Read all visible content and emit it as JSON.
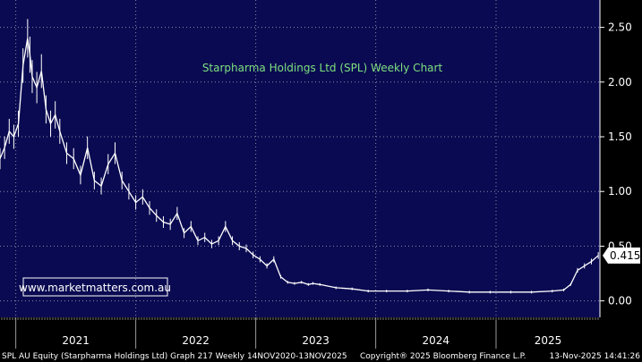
{
  "chart_data": {
    "type": "line",
    "title": "Starpharma Holdings Ltd (SPL) Weekly Chart",
    "watermark": "www.marketmatters.com.au",
    "x_labels": [
      "2021",
      "2022",
      "2023",
      "2024",
      "2025"
    ],
    "y_ticks": [
      "0.00",
      "0.50",
      "1.00",
      "1.50",
      "2.00",
      "2.50"
    ],
    "ylim": [
      -0.15,
      2.75
    ],
    "grid": true,
    "last_value": "0.415",
    "footer_left": "SPL AU Equity (Starpharma Holdings Ltd) Graph 217 Weekly 14NOV2020-13NOV2025",
    "footer_center": "Copyright® 2025 Bloomberg Finance L.P.",
    "footer_right": "13-Nov-2025 14:41:26",
    "series": [
      {
        "x": [
          "2020-11-14",
          "2020-11-28",
          "2020-12-12",
          "2020-12-26",
          "2021-01-09",
          "2021-01-23",
          "2021-02-06",
          "2021-02-13",
          "2021-02-20",
          "2021-03-06",
          "2021-03-20",
          "2021-04-03",
          "2021-04-17",
          "2021-05-01",
          "2021-05-15",
          "2021-06-05",
          "2021-06-26",
          "2021-07-17",
          "2021-08-07",
          "2021-08-28",
          "2021-09-18",
          "2021-10-09",
          "2021-10-30",
          "2021-11-20",
          "2021-12-11",
          "2022-01-01",
          "2022-01-22",
          "2022-02-12",
          "2022-03-05",
          "2022-03-26",
          "2022-04-16",
          "2022-05-07",
          "2022-05-28",
          "2022-06-18",
          "2022-07-09",
          "2022-07-30",
          "2022-08-20",
          "2022-09-10",
          "2022-10-01",
          "2022-10-22",
          "2022-11-12",
          "2022-12-03",
          "2022-12-24",
          "2023-01-14",
          "2023-02-04",
          "2023-02-25",
          "2023-03-18",
          "2023-04-08",
          "2023-04-29",
          "2023-05-20",
          "2023-06-10",
          "2023-06-24",
          "2023-07-15",
          "2023-09-02",
          "2023-10-21",
          "2023-12-09",
          "2024-02-03",
          "2024-04-06",
          "2024-06-08",
          "2024-08-10",
          "2024-10-12",
          "2024-12-14",
          "2025-02-15",
          "2025-04-19",
          "2025-06-21",
          "2025-07-26",
          "2025-08-16",
          "2025-09-06",
          "2025-09-27",
          "2025-10-18",
          "2025-11-08"
        ],
        "values": [
          1.3,
          1.4,
          1.55,
          1.5,
          1.62,
          2.15,
          2.4,
          2.25,
          2.05,
          1.95,
          2.1,
          1.75,
          1.62,
          1.7,
          1.55,
          1.35,
          1.3,
          1.15,
          1.4,
          1.1,
          1.05,
          1.25,
          1.35,
          1.1,
          1.0,
          0.9,
          0.95,
          0.85,
          0.78,
          0.72,
          0.7,
          0.8,
          0.62,
          0.68,
          0.55,
          0.58,
          0.52,
          0.55,
          0.68,
          0.55,
          0.5,
          0.48,
          0.42,
          0.38,
          0.32,
          0.38,
          0.22,
          0.17,
          0.16,
          0.17,
          0.15,
          0.16,
          0.15,
          0.12,
          0.11,
          0.09,
          0.09,
          0.09,
          0.1,
          0.09,
          0.08,
          0.08,
          0.08,
          0.08,
          0.09,
          0.1,
          0.15,
          0.28,
          0.32,
          0.36,
          0.415
        ]
      }
    ]
  }
}
